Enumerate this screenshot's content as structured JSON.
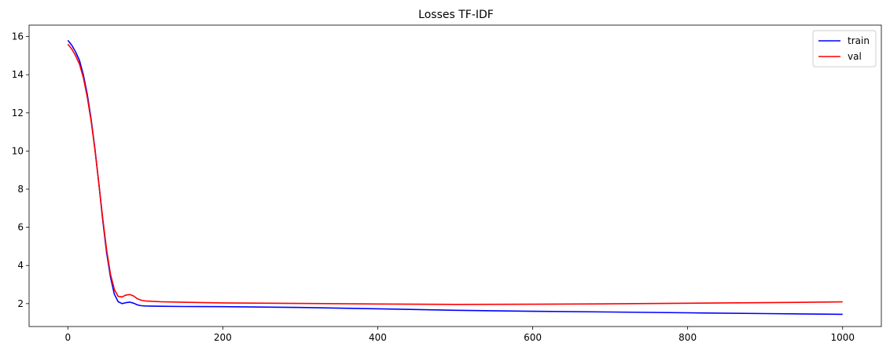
{
  "chart_data": {
    "type": "line",
    "title": "Losses TF-IDF",
    "xlabel": "",
    "ylabel": "",
    "xlim": [
      -50,
      1050
    ],
    "ylim": [
      0.8,
      16.6
    ],
    "xticks": [
      0,
      200,
      400,
      600,
      800,
      1000
    ],
    "xtick_labels": [
      "0",
      "200",
      "400",
      "600",
      "800",
      "1000"
    ],
    "yticks": [
      2,
      4,
      6,
      8,
      10,
      12,
      14,
      16
    ],
    "ytick_labels": [
      "2",
      "4",
      "6",
      "8",
      "10",
      "12",
      "14",
      "16"
    ],
    "grid": false,
    "legend_position": "top-right",
    "series": [
      {
        "name": "train",
        "color": "#0000ff",
        "x": [
          0,
          5,
          10,
          15,
          20,
          25,
          30,
          35,
          40,
          45,
          50,
          55,
          60,
          65,
          70,
          75,
          80,
          85,
          90,
          95,
          100,
          120,
          150,
          200,
          300,
          400,
          500,
          600,
          700,
          800,
          900,
          1000
        ],
        "y": [
          15.8,
          15.55,
          15.2,
          14.75,
          14.0,
          13.0,
          11.7,
          10.1,
          8.3,
          6.4,
          4.7,
          3.4,
          2.5,
          2.1,
          2.0,
          2.05,
          2.08,
          2.02,
          1.93,
          1.89,
          1.88,
          1.86,
          1.85,
          1.84,
          1.8,
          1.73,
          1.65,
          1.6,
          1.56,
          1.52,
          1.48,
          1.44
        ]
      },
      {
        "name": "val",
        "color": "#ff0000",
        "x": [
          0,
          5,
          10,
          15,
          20,
          25,
          30,
          35,
          40,
          45,
          50,
          55,
          60,
          65,
          70,
          75,
          80,
          85,
          90,
          95,
          100,
          120,
          150,
          200,
          300,
          400,
          500,
          600,
          700,
          800,
          900,
          1000
        ],
        "y": [
          15.6,
          15.35,
          15.0,
          14.55,
          13.85,
          12.85,
          11.6,
          10.05,
          8.3,
          6.5,
          4.85,
          3.55,
          2.75,
          2.38,
          2.35,
          2.45,
          2.48,
          2.4,
          2.25,
          2.18,
          2.14,
          2.1,
          2.07,
          2.04,
          2.01,
          1.98,
          1.96,
          1.97,
          1.99,
          2.02,
          2.05,
          2.09
        ]
      }
    ]
  }
}
